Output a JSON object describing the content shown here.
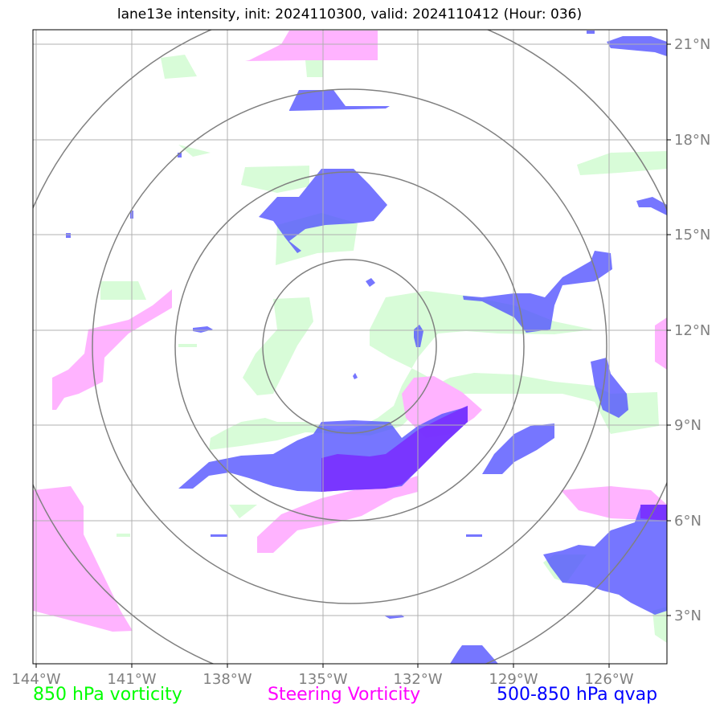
{
  "title": "lane13e intensity, init: 2024110300, valid: 2024110412 (Hour: 036)",
  "map": {
    "lat_labels": [
      "21°N",
      "18°N",
      "15°N",
      "12°N",
      "9°N",
      "6°N",
      "3°N"
    ],
    "lon_labels": [
      "144°W",
      "141°W",
      "138°W",
      "135°W",
      "132°W",
      "129°W",
      "126°W"
    ],
    "center": {
      "lat": 11.5,
      "lon": -134.2
    },
    "grid": true,
    "range_rings": 4
  },
  "legend": {
    "vort850": {
      "label": "850 hPa vorticity",
      "color": "#00ff00"
    },
    "steering": {
      "label": "Steering Vorticity",
      "color": "#ff00ff"
    },
    "qvap": {
      "label": "500-850 hPa qvap",
      "color": "#0000ff"
    }
  },
  "colors": {
    "vort850_fill": "#d8fcd8",
    "steering_fill": "#ffb3ff",
    "qvap_fill": "#5555ff",
    "rings": "#808080",
    "grid": "#b0b0b0"
  }
}
